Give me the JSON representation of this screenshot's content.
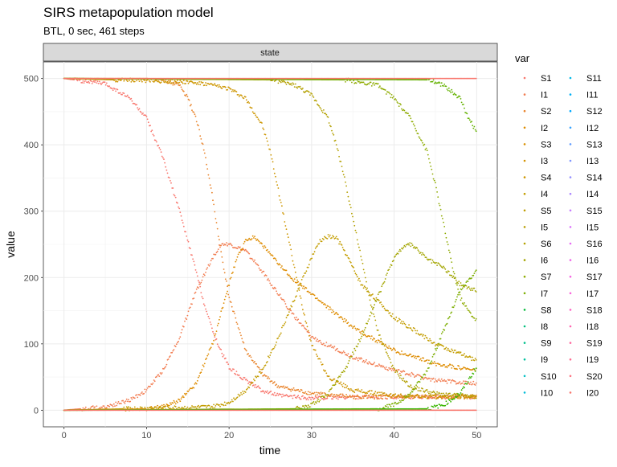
{
  "chart_data": {
    "type": "scatter",
    "title": "SIRS metapopulation model",
    "subtitle": "BTL, 0 sec, 461 steps",
    "facet_label": "state",
    "xlabel": "time",
    "ylabel": "value",
    "xlim": [
      -2.5,
      52.5
    ],
    "ylim": [
      -25,
      525
    ],
    "xticks": [
      0,
      10,
      20,
      30,
      40,
      50
    ],
    "yticks": [
      0,
      100,
      200,
      300,
      400,
      500
    ],
    "grid": true,
    "legend_title": "var",
    "legend_position": "right",
    "series": [
      {
        "name": "S1",
        "color": "#F8766D",
        "x": [
          0,
          5,
          8,
          10,
          12,
          14,
          16,
          17,
          18,
          19,
          20,
          22,
          24,
          26,
          30,
          35,
          40,
          45,
          50
        ],
        "y": [
          500,
          492,
          470,
          440,
          380,
          300,
          210,
          160,
          120,
          90,
          65,
          45,
          30,
          22,
          18,
          20,
          20,
          20,
          20
        ]
      },
      {
        "name": "I1",
        "color": "#F27D52",
        "x": [
          0,
          5,
          8,
          10,
          12,
          14,
          16,
          18,
          19,
          20,
          22,
          24,
          26,
          28,
          30,
          35,
          40,
          45,
          50
        ],
        "y": [
          0,
          5,
          15,
          30,
          60,
          110,
          180,
          230,
          250,
          250,
          240,
          210,
          175,
          140,
          110,
          80,
          60,
          45,
          40
        ]
      },
      {
        "name": "S2",
        "color": "#E9842C",
        "x": [
          0,
          10,
          12,
          14,
          15,
          16,
          17,
          18,
          19,
          20,
          22,
          24,
          26,
          30,
          35,
          40,
          45,
          50
        ],
        "y": [
          500,
          500,
          498,
          490,
          470,
          440,
          390,
          320,
          240,
          170,
          90,
          55,
          35,
          25,
          20,
          20,
          20,
          20
        ]
      },
      {
        "name": "I2",
        "color": "#DE8C00",
        "x": [
          0,
          10,
          12,
          14,
          16,
          18,
          20,
          21,
          22,
          23,
          24,
          26,
          28,
          30,
          35,
          40,
          45,
          50
        ],
        "y": [
          0,
          2,
          5,
          15,
          40,
          100,
          190,
          230,
          255,
          262,
          250,
          220,
          195,
          175,
          125,
          90,
          70,
          60
        ]
      },
      {
        "name": "S4",
        "color": "#CD9600",
        "x": [
          0,
          15,
          18,
          20,
          22,
          24,
          25,
          26,
          27,
          28,
          29,
          30,
          32,
          35,
          40,
          45,
          50
        ],
        "y": [
          500,
          495,
          490,
          485,
          470,
          430,
          390,
          330,
          270,
          210,
          150,
          100,
          50,
          30,
          22,
          20,
          20
        ]
      },
      {
        "name": "I4",
        "color": "#C39D00",
        "x": [
          0,
          18,
          20,
          22,
          24,
          26,
          28,
          30,
          31,
          32,
          33,
          34,
          36,
          40,
          45,
          50
        ],
        "y": [
          0,
          5,
          12,
          30,
          60,
          110,
          170,
          230,
          255,
          262,
          260,
          240,
          190,
          140,
          100,
          75
        ]
      },
      {
        "name": "S6",
        "color": "#B3A000",
        "x": [
          0,
          25,
          28,
          30,
          32,
          33,
          34,
          35,
          36,
          37,
          38,
          40,
          42,
          45,
          50
        ],
        "y": [
          500,
          498,
          490,
          475,
          440,
          400,
          350,
          290,
          230,
          170,
          120,
          60,
          35,
          25,
          20
        ]
      },
      {
        "name": "I6",
        "color": "#A3A500",
        "x": [
          0,
          28,
          30,
          32,
          34,
          36,
          38,
          40,
          41,
          42,
          43,
          44,
          46,
          48,
          50
        ],
        "y": [
          0,
          2,
          8,
          25,
          60,
          110,
          170,
          230,
          245,
          250,
          240,
          228,
          215,
          190,
          180
        ]
      },
      {
        "name": "S8",
        "color": "#8EAB00",
        "x": [
          0,
          34,
          38,
          40,
          42,
          44,
          45,
          46,
          47,
          48,
          49,
          50
        ],
        "y": [
          500,
          498,
          490,
          470,
          440,
          390,
          340,
          280,
          220,
          170,
          150,
          135
        ]
      },
      {
        "name": "I8",
        "color": "#7CAE00",
        "x": [
          0,
          38,
          40,
          42,
          44,
          46,
          48,
          50
        ],
        "y": [
          0,
          2,
          8,
          25,
          60,
          120,
          180,
          210
        ]
      },
      {
        "name": "S10",
        "color": "#64B200",
        "x": [
          0,
          44,
          46,
          48,
          49,
          50
        ],
        "y": [
          500,
          498,
          490,
          470,
          440,
          420
        ]
      },
      {
        "name": "I10",
        "color": "#39B600",
        "x": [
          0,
          44,
          46,
          48,
          49,
          50
        ],
        "y": [
          0,
          2,
          8,
          25,
          45,
          65
        ]
      },
      {
        "name": "S20",
        "color": "#F8766D",
        "x": [
          0,
          50
        ],
        "y": [
          500,
          500
        ]
      },
      {
        "name": "I20",
        "color": "#F8766D",
        "x": [
          0,
          50
        ],
        "y": [
          0,
          0
        ]
      }
    ],
    "legend": [
      {
        "label": "S1",
        "color": "#F8766D"
      },
      {
        "label": "I1",
        "color": "#F27D52"
      },
      {
        "label": "S2",
        "color": "#E9842C"
      },
      {
        "label": "I2",
        "color": "#DE8C00"
      },
      {
        "label": "S3",
        "color": "#D89000"
      },
      {
        "label": "I3",
        "color": "#D39200"
      },
      {
        "label": "S4",
        "color": "#CD9600"
      },
      {
        "label": "I4",
        "color": "#C39D00"
      },
      {
        "label": "S5",
        "color": "#BE9C00"
      },
      {
        "label": "I5",
        "color": "#B89E00"
      },
      {
        "label": "S6",
        "color": "#B3A000"
      },
      {
        "label": "I6",
        "color": "#A3A500"
      },
      {
        "label": "S7",
        "color": "#8EAB00"
      },
      {
        "label": "I7",
        "color": "#7CAE00"
      },
      {
        "label": "S8",
        "color": "#00BA38"
      },
      {
        "label": "I8",
        "color": "#00BF7D"
      },
      {
        "label": "S9",
        "color": "#00C08B"
      },
      {
        "label": "I9",
        "color": "#00C19F"
      },
      {
        "label": "S10",
        "color": "#00BFC4"
      },
      {
        "label": "I10",
        "color": "#00BCD8"
      },
      {
        "label": "S11",
        "color": "#00B8E7"
      },
      {
        "label": "I11",
        "color": "#00B0F6"
      },
      {
        "label": "S12",
        "color": "#00A9FF"
      },
      {
        "label": "I12",
        "color": "#35A2FF"
      },
      {
        "label": "S13",
        "color": "#619CFF"
      },
      {
        "label": "I13",
        "color": "#7F96FF"
      },
      {
        "label": "S14",
        "color": "#9590FF"
      },
      {
        "label": "I14",
        "color": "#AC88FF"
      },
      {
        "label": "S15",
        "color": "#C77CFF"
      },
      {
        "label": "I15",
        "color": "#DB72FB"
      },
      {
        "label": "S16",
        "color": "#E76BF3"
      },
      {
        "label": "I16",
        "color": "#F066EA"
      },
      {
        "label": "S17",
        "color": "#F564E3"
      },
      {
        "label": "I17",
        "color": "#FA62DB"
      },
      {
        "label": "S18",
        "color": "#FF61C3"
      },
      {
        "label": "I18",
        "color": "#FF64B0"
      },
      {
        "label": "S19",
        "color": "#FF689F"
      },
      {
        "label": "I19",
        "color": "#FF6C91"
      },
      {
        "label": "S20",
        "color": "#FC717F"
      },
      {
        "label": "I20",
        "color": "#F8766D"
      }
    ]
  }
}
